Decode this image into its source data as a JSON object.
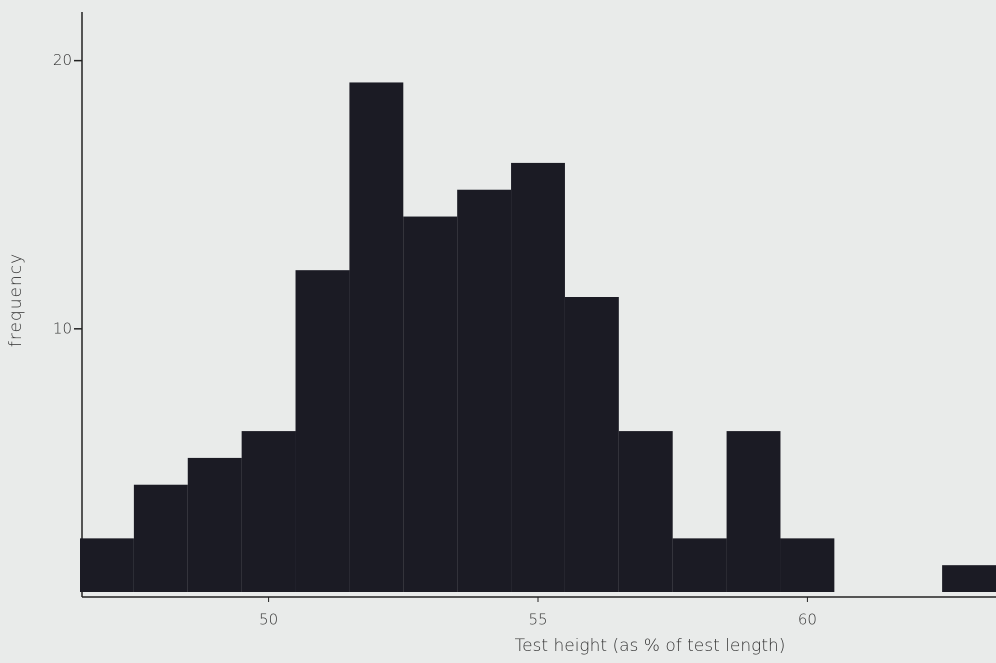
{
  "chart_data": {
    "type": "histogram",
    "xlabel": "Test height (as % of test length)",
    "ylabel": "frequency",
    "bins": [
      46.5,
      47.5,
      48.5,
      49.5,
      50.5,
      51.5,
      52.5,
      53.5,
      54.5,
      55.5,
      56.5,
      57.5,
      58.5,
      59.5,
      60.5,
      61.5,
      62.5,
      63.5
    ],
    "values": [
      2,
      4,
      5,
      6,
      12,
      19,
      14,
      15,
      16,
      11,
      6,
      2,
      6,
      2,
      0,
      0,
      1
    ],
    "color": "#1b1b24",
    "xlim": [
      46.5,
      63.5
    ],
    "xticks": [
      50,
      55,
      60
    ],
    "ylim": [
      0,
      22
    ],
    "yticks": [
      10,
      20
    ]
  }
}
